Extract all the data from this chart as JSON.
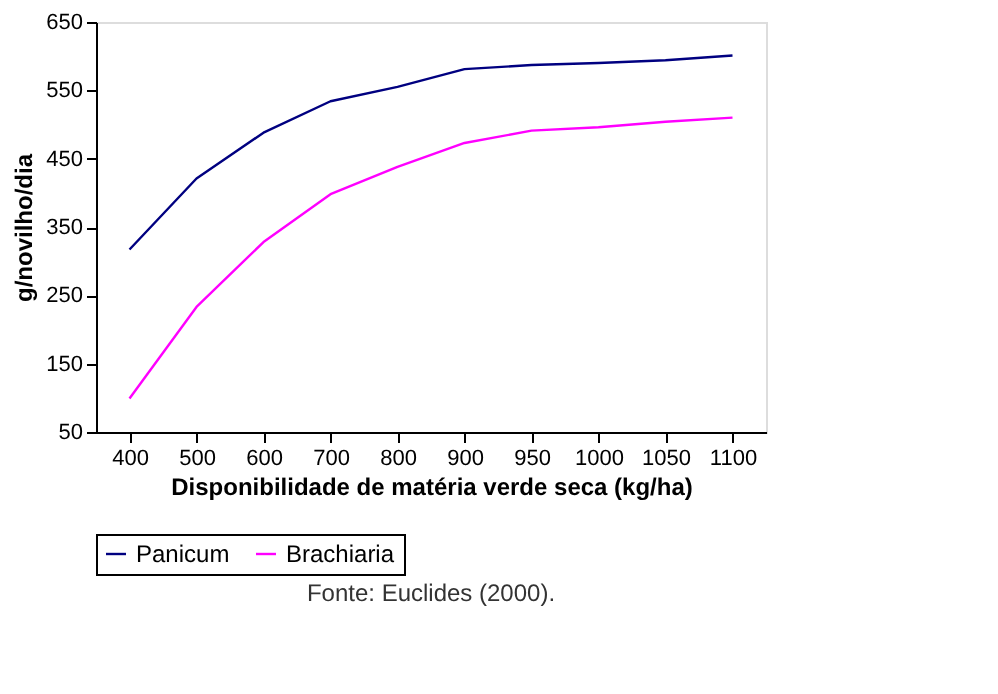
{
  "chart_data": {
    "type": "line",
    "xlabel": "Disponibilidade de matéria verde seca (kg/ha)",
    "ylabel": "g/novilho/dia",
    "categories": [
      "400",
      "500",
      "600",
      "700",
      "800",
      "900",
      "950",
      "1000",
      "1050",
      "1100"
    ],
    "series": [
      {
        "name": "Panicum",
        "color": "#000080",
        "values": [
          317,
          421,
          488,
          534,
          555,
          581,
          587,
          590,
          594,
          601
        ]
      },
      {
        "name": "Brachiaria",
        "color": "#ff00ff",
        "values": [
          99,
          233,
          328,
          398,
          438,
          473,
          491,
          496,
          504,
          510
        ]
      }
    ],
    "ylim": [
      50,
      650
    ],
    "yticks": [
      50,
      150,
      250,
      350,
      450,
      550,
      650
    ],
    "grid": false,
    "legend": "bottom",
    "marker": "none",
    "line_style": "solid",
    "annotations": [
      "Fonte: Euclides (2000)."
    ]
  }
}
